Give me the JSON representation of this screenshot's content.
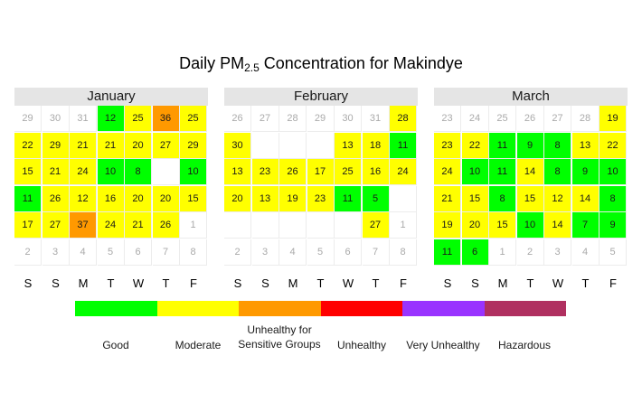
{
  "chart_data": {
    "type": "heatmap",
    "title_main": "Daily PM",
    "title_sub": "2.5",
    "title_rest": " Concentration for Makindye",
    "weekdays": [
      "S",
      "S",
      "M",
      "T",
      "W",
      "T",
      "F"
    ],
    "months": [
      {
        "name": "January",
        "cells": [
          {
            "v": "29",
            "c": null,
            "out": true
          },
          {
            "v": "30",
            "c": null,
            "out": true
          },
          {
            "v": "31",
            "c": null,
            "out": true
          },
          {
            "v": "12",
            "c": "good"
          },
          {
            "v": "25",
            "c": "moderate"
          },
          {
            "v": "36",
            "c": "usg"
          },
          {
            "v": "25",
            "c": "moderate"
          },
          {
            "v": "22",
            "c": "moderate"
          },
          {
            "v": "29",
            "c": "moderate"
          },
          {
            "v": "21",
            "c": "moderate"
          },
          {
            "v": "21",
            "c": "moderate"
          },
          {
            "v": "20",
            "c": "moderate"
          },
          {
            "v": "27",
            "c": "moderate"
          },
          {
            "v": "29",
            "c": "moderate"
          },
          {
            "v": "15",
            "c": "moderate"
          },
          {
            "v": "21",
            "c": "moderate"
          },
          {
            "v": "24",
            "c": "moderate"
          },
          {
            "v": "10",
            "c": "good"
          },
          {
            "v": "8",
            "c": "good"
          },
          {
            "v": "",
            "c": null
          },
          {
            "v": "10",
            "c": "good"
          },
          {
            "v": "11",
            "c": "good"
          },
          {
            "v": "26",
            "c": "moderate"
          },
          {
            "v": "12",
            "c": "moderate"
          },
          {
            "v": "16",
            "c": "moderate"
          },
          {
            "v": "20",
            "c": "moderate"
          },
          {
            "v": "20",
            "c": "moderate"
          },
          {
            "v": "15",
            "c": "moderate"
          },
          {
            "v": "17",
            "c": "moderate"
          },
          {
            "v": "27",
            "c": "moderate"
          },
          {
            "v": "37",
            "c": "usg"
          },
          {
            "v": "24",
            "c": "moderate"
          },
          {
            "v": "21",
            "c": "moderate"
          },
          {
            "v": "26",
            "c": "moderate"
          },
          {
            "v": "1",
            "c": null,
            "out": true
          },
          {
            "v": "2",
            "c": null,
            "out": true
          },
          {
            "v": "3",
            "c": null,
            "out": true
          },
          {
            "v": "4",
            "c": null,
            "out": true
          },
          {
            "v": "5",
            "c": null,
            "out": true
          },
          {
            "v": "6",
            "c": null,
            "out": true
          },
          {
            "v": "7",
            "c": null,
            "out": true
          },
          {
            "v": "8",
            "c": null,
            "out": true
          }
        ]
      },
      {
        "name": "February",
        "cells": [
          {
            "v": "26",
            "c": null,
            "out": true
          },
          {
            "v": "27",
            "c": null,
            "out": true
          },
          {
            "v": "28",
            "c": null,
            "out": true
          },
          {
            "v": "29",
            "c": null,
            "out": true
          },
          {
            "v": "30",
            "c": null,
            "out": true
          },
          {
            "v": "31",
            "c": null,
            "out": true
          },
          {
            "v": "28",
            "c": "moderate"
          },
          {
            "v": "30",
            "c": "moderate"
          },
          {
            "v": "",
            "c": null
          },
          {
            "v": "",
            "c": null
          },
          {
            "v": "",
            "c": null
          },
          {
            "v": "13",
            "c": "moderate"
          },
          {
            "v": "18",
            "c": "moderate"
          },
          {
            "v": "11",
            "c": "good"
          },
          {
            "v": "13",
            "c": "moderate"
          },
          {
            "v": "23",
            "c": "moderate"
          },
          {
            "v": "26",
            "c": "moderate"
          },
          {
            "v": "17",
            "c": "moderate"
          },
          {
            "v": "25",
            "c": "moderate"
          },
          {
            "v": "16",
            "c": "moderate"
          },
          {
            "v": "24",
            "c": "moderate"
          },
          {
            "v": "20",
            "c": "moderate"
          },
          {
            "v": "13",
            "c": "moderate"
          },
          {
            "v": "19",
            "c": "moderate"
          },
          {
            "v": "23",
            "c": "moderate"
          },
          {
            "v": "11",
            "c": "good"
          },
          {
            "v": "5",
            "c": "good"
          },
          {
            "v": "",
            "c": null
          },
          {
            "v": "",
            "c": null
          },
          {
            "v": "",
            "c": null
          },
          {
            "v": "",
            "c": null
          },
          {
            "v": "",
            "c": null
          },
          {
            "v": "",
            "c": null
          },
          {
            "v": "27",
            "c": "moderate"
          },
          {
            "v": "1",
            "c": null,
            "out": true
          },
          {
            "v": "2",
            "c": null,
            "out": true
          },
          {
            "v": "3",
            "c": null,
            "out": true
          },
          {
            "v": "4",
            "c": null,
            "out": true
          },
          {
            "v": "5",
            "c": null,
            "out": true
          },
          {
            "v": "6",
            "c": null,
            "out": true
          },
          {
            "v": "7",
            "c": null,
            "out": true
          },
          {
            "v": "8",
            "c": null,
            "out": true
          }
        ]
      },
      {
        "name": "March",
        "cells": [
          {
            "v": "23",
            "c": null,
            "out": true
          },
          {
            "v": "24",
            "c": null,
            "out": true
          },
          {
            "v": "25",
            "c": null,
            "out": true
          },
          {
            "v": "26",
            "c": null,
            "out": true
          },
          {
            "v": "27",
            "c": null,
            "out": true
          },
          {
            "v": "28",
            "c": null,
            "out": true
          },
          {
            "v": "19",
            "c": "moderate"
          },
          {
            "v": "23",
            "c": "moderate"
          },
          {
            "v": "22",
            "c": "moderate"
          },
          {
            "v": "11",
            "c": "good"
          },
          {
            "v": "9",
            "c": "good"
          },
          {
            "v": "8",
            "c": "good"
          },
          {
            "v": "13",
            "c": "moderate"
          },
          {
            "v": "22",
            "c": "moderate"
          },
          {
            "v": "24",
            "c": "moderate"
          },
          {
            "v": "10",
            "c": "good"
          },
          {
            "v": "11",
            "c": "good"
          },
          {
            "v": "14",
            "c": "moderate"
          },
          {
            "v": "8",
            "c": "good"
          },
          {
            "v": "9",
            "c": "good"
          },
          {
            "v": "10",
            "c": "good"
          },
          {
            "v": "21",
            "c": "moderate"
          },
          {
            "v": "15",
            "c": "moderate"
          },
          {
            "v": "8",
            "c": "good"
          },
          {
            "v": "15",
            "c": "moderate"
          },
          {
            "v": "12",
            "c": "moderate"
          },
          {
            "v": "14",
            "c": "moderate"
          },
          {
            "v": "8",
            "c": "good"
          },
          {
            "v": "19",
            "c": "moderate"
          },
          {
            "v": "20",
            "c": "moderate"
          },
          {
            "v": "15",
            "c": "moderate"
          },
          {
            "v": "10",
            "c": "good"
          },
          {
            "v": "14",
            "c": "moderate"
          },
          {
            "v": "7",
            "c": "good"
          },
          {
            "v": "9",
            "c": "good"
          },
          {
            "v": "11",
            "c": "good"
          },
          {
            "v": "6",
            "c": "good"
          },
          {
            "v": "1",
            "c": null,
            "out": true
          },
          {
            "v": "2",
            "c": null,
            "out": true
          },
          {
            "v": "3",
            "c": null,
            "out": true
          },
          {
            "v": "4",
            "c": null,
            "out": true
          },
          {
            "v": "5",
            "c": null,
            "out": true
          }
        ]
      }
    ],
    "legend": [
      {
        "key": "good",
        "label": "Good",
        "color": "#00ff00"
      },
      {
        "key": "moderate",
        "label": "Moderate",
        "color": "#ffff00"
      },
      {
        "key": "usg",
        "label": "Unhealthy for\nSensitive Groups",
        "color": "#ff9900"
      },
      {
        "key": "unhealthy",
        "label": "Unhealthy",
        "color": "#ff0000"
      },
      {
        "key": "very_unhealthy",
        "label": "Very Unhealthy",
        "color": "#9933ff"
      },
      {
        "key": "hazardous",
        "label": "Hazardous",
        "color": "#b03060"
      }
    ]
  }
}
